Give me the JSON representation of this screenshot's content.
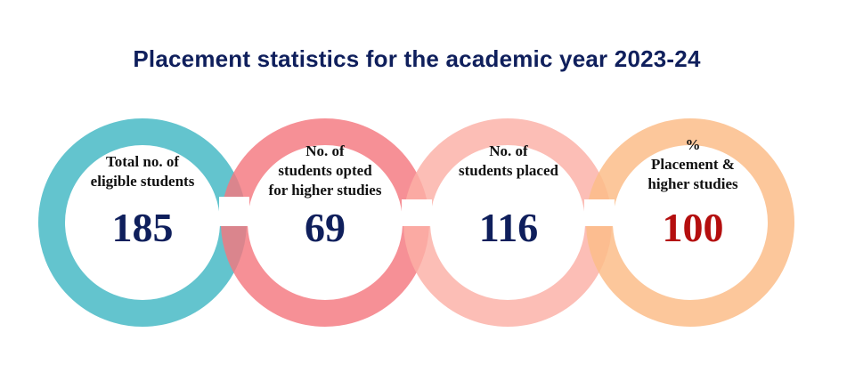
{
  "title": "Placement statistics for the academic year 2023-24",
  "stats": [
    {
      "label_lines": [
        "Total no. of",
        "eligible students"
      ],
      "value": "185",
      "ring_color": "#5bc1cb",
      "value_color": "#0f1f5c"
    },
    {
      "label_lines": [
        "No. of",
        "students opted",
        "for higher studies"
      ],
      "value": "69",
      "ring_color": "#f4777f",
      "value_color": "#0f1f5c"
    },
    {
      "label_lines": [
        "No. of",
        "students placed"
      ],
      "value": "116",
      "ring_color": "#fbb0a6",
      "value_color": "#0f1f5c"
    },
    {
      "label_lines": [
        "%",
        "Placement &",
        "higher studies"
      ],
      "value": "100",
      "ring_color": "#fcbd8a",
      "value_color": "#b40f0f"
    }
  ]
}
